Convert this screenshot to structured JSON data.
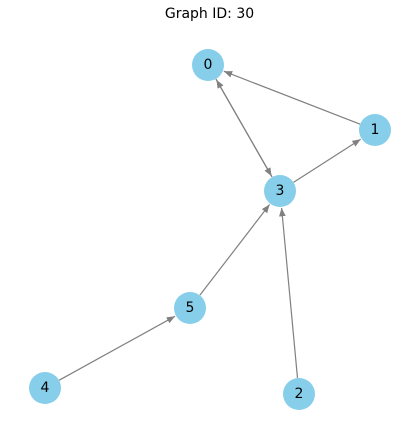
{
  "title": "Graph ID: 30",
  "colors": {
    "node_fill": "#87ceeb",
    "edge": "#808080",
    "label": "#000000"
  },
  "graph": {
    "directed": true,
    "nodes": [
      {
        "id": "0",
        "label": "0"
      },
      {
        "id": "1",
        "label": "1"
      },
      {
        "id": "2",
        "label": "2"
      },
      {
        "id": "3",
        "label": "3"
      },
      {
        "id": "4",
        "label": "4"
      },
      {
        "id": "5",
        "label": "5"
      }
    ],
    "edges": [
      {
        "source": "0",
        "target": "3"
      },
      {
        "source": "3",
        "target": "0"
      },
      {
        "source": "1",
        "target": "0"
      },
      {
        "source": "3",
        "target": "1"
      },
      {
        "source": "2",
        "target": "3"
      },
      {
        "source": "5",
        "target": "3"
      },
      {
        "source": "4",
        "target": "5"
      }
    ]
  }
}
